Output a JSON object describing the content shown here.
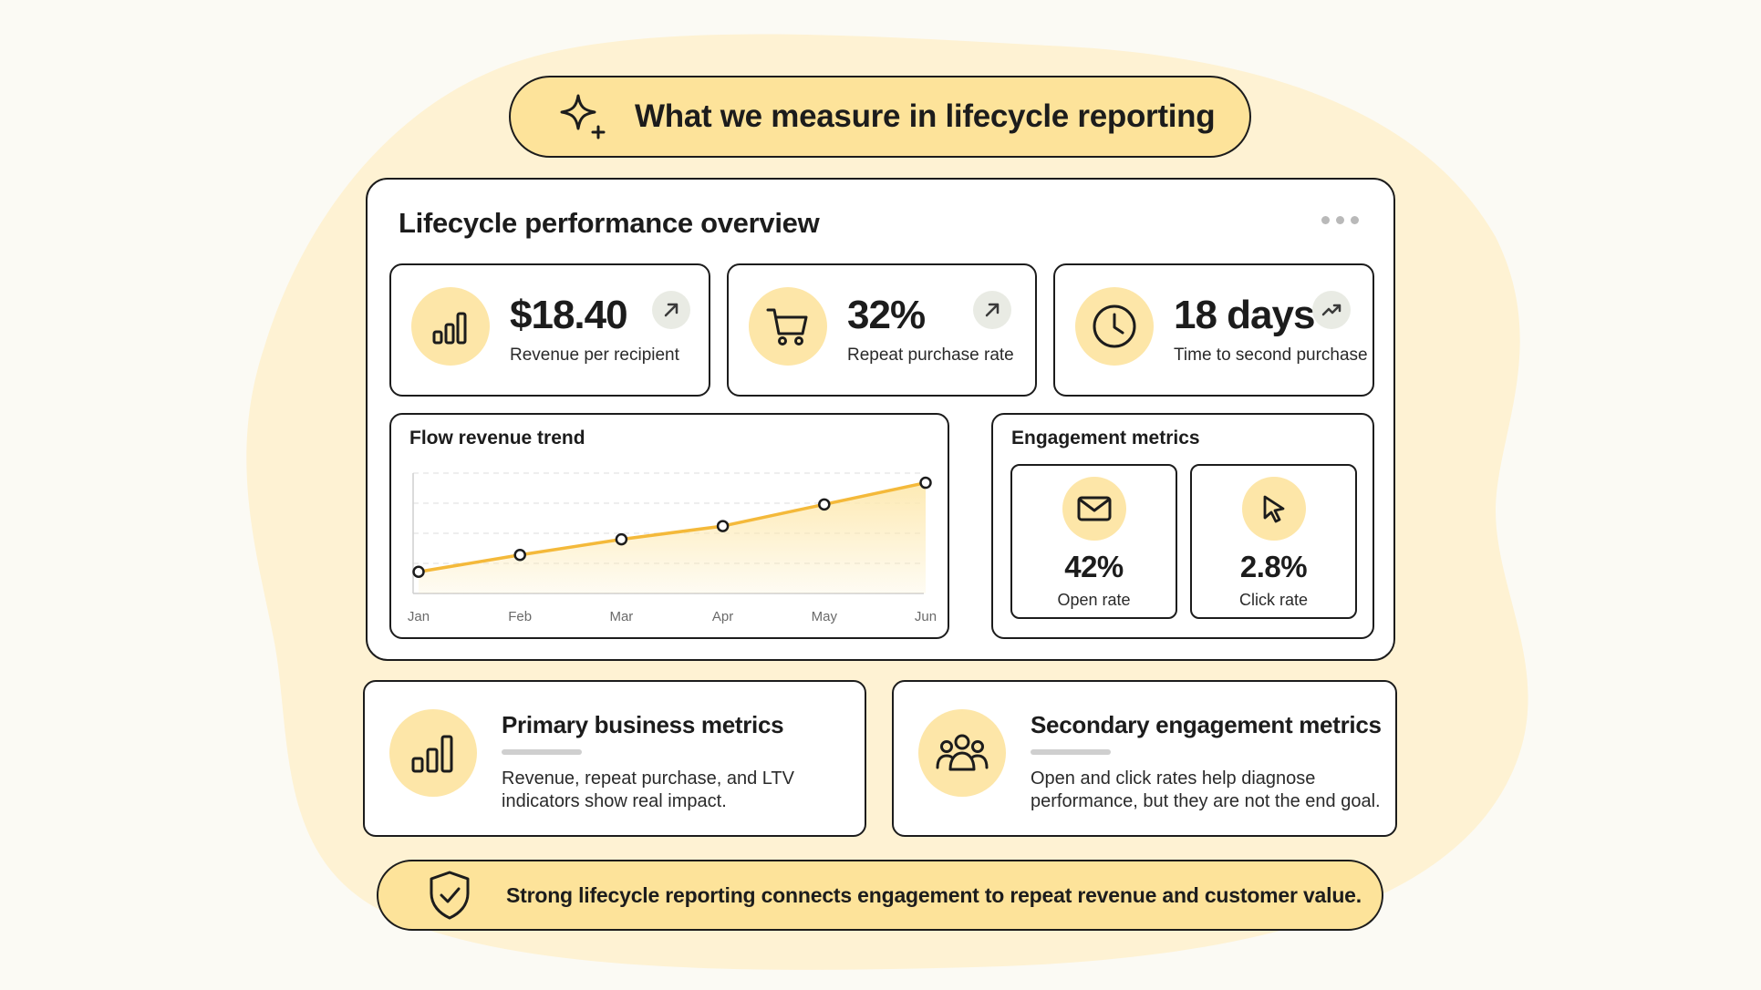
{
  "header": {
    "title": "What we measure in lifecycle reporting",
    "icon": "sparkle-icon"
  },
  "overview": {
    "title": "Lifecycle performance overview",
    "menu_icon": "more-dots-icon",
    "kpis": [
      {
        "value": "$18.40",
        "label": "Revenue per recipient",
        "icon": "bar-chart-icon",
        "trend_icon": "arrow-up-right-icon"
      },
      {
        "value": "32%",
        "label": "Repeat purchase rate",
        "icon": "shopping-cart-icon",
        "trend_icon": "arrow-up-right-icon"
      },
      {
        "value": "18 days",
        "label": "Time to second purchase",
        "icon": "clock-icon",
        "trend_icon": "trending-up-icon"
      }
    ]
  },
  "trend": {
    "title": "Flow revenue trend"
  },
  "chart_data": {
    "type": "area",
    "title": "Flow revenue trend",
    "categories": [
      "Jan",
      "Feb",
      "Mar",
      "Apr",
      "May",
      "Jun"
    ],
    "values": [
      0.18,
      0.32,
      0.45,
      0.56,
      0.74,
      0.92
    ],
    "ylim": [
      0,
      1
    ],
    "grid": true,
    "line_color": "#f4b93a",
    "fill_color": "#fde9b0"
  },
  "engagement": {
    "title": "Engagement metrics",
    "items": [
      {
        "value": "42%",
        "label": "Open rate",
        "icon": "envelope-icon"
      },
      {
        "value": "2.8%",
        "label": "Click rate",
        "icon": "cursor-icon"
      }
    ]
  },
  "cards": [
    {
      "title": "Primary business metrics",
      "description_lines": [
        "Revenue, repeat purchase, and LTV",
        "indicators show real impact."
      ],
      "icon": "bar-chart-icon"
    },
    {
      "title": "Secondary engagement metrics",
      "description_lines": [
        "Open and click rates help diagnose",
        "performance, but they are not the end goal."
      ],
      "icon": "people-group-icon"
    }
  ],
  "footer": {
    "text": "Strong lifecycle reporting connects engagement to repeat revenue and customer value.",
    "icon": "shield-check-icon"
  },
  "colors": {
    "accent": "#fde39a",
    "icon_bg": "#fde6a8",
    "background_blob": "#fef1d0",
    "outline": "#1c1c1c"
  }
}
